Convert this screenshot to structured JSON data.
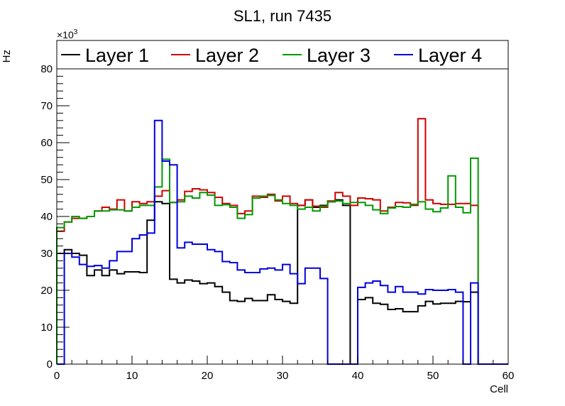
{
  "chart_data": {
    "type": "line",
    "style": "step-histogram",
    "title": "SL1, run 7435",
    "xlabel": "Cell",
    "ylabel": "Hz",
    "y_multiplier": "×10",
    "y_multiplier_exp": "3",
    "xlim": [
      0,
      60
    ],
    "ylim": [
      0,
      80
    ],
    "x_ticks": [
      "0",
      "10",
      "20",
      "30",
      "40",
      "50",
      "60"
    ],
    "y_ticks": [
      "0",
      "10",
      "20",
      "30",
      "40",
      "50",
      "60",
      "70",
      "80"
    ],
    "grid": false,
    "legend_position": "top",
    "bin_width": 1,
    "series": [
      {
        "name": "Layer 1",
        "color": "#000000",
        "values": [
          30,
          31,
          30,
          29.5,
          24,
          25.5,
          24,
          25.5,
          24.5,
          25,
          25,
          24.8,
          39,
          44,
          43.5,
          23,
          22,
          22.8,
          22.5,
          21.8,
          22,
          21,
          19.5,
          17.2,
          17,
          17.8,
          17.2,
          17.2,
          18.8,
          17.5,
          17,
          16.5,
          43,
          44.5,
          42.5,
          43,
          44,
          44.5,
          43,
          0,
          17.5,
          18,
          16.5,
          16.2,
          14.8,
          15,
          14.2,
          14.2,
          15.8,
          17,
          16.3,
          16.5,
          16.5,
          17,
          16.9,
          19.5,
          0,
          0,
          0,
          0
        ]
      },
      {
        "name": "Layer 2",
        "color": "#d00000",
        "values": [
          36,
          38.5,
          39.5,
          39.5,
          40,
          41.5,
          42.5,
          42,
          44.5,
          41.5,
          44,
          43.5,
          44,
          45.5,
          47,
          43.8,
          44.5,
          46.8,
          47.5,
          47.2,
          46.5,
          45.2,
          43.5,
          43,
          40.8,
          41.5,
          45.5,
          45.2,
          46,
          44.2,
          45.5,
          43.5,
          43,
          44.5,
          42.8,
          42.5,
          44.2,
          46.5,
          45.5,
          43,
          45,
          44.8,
          44.5,
          41.5,
          42.5,
          43.8,
          43.7,
          43,
          66.5,
          44.5,
          43.5,
          43.3,
          43.3,
          43.5,
          43.5,
          43,
          0,
          0,
          0,
          0
        ]
      },
      {
        "name": "Layer 3",
        "color": "#009900",
        "values": [
          37,
          38.5,
          40,
          39.5,
          40,
          41.5,
          41.5,
          41.8,
          41.8,
          41.5,
          42.5,
          43,
          43,
          48,
          55.5,
          43.8,
          44,
          45.5,
          45,
          46.5,
          45.8,
          43,
          43.2,
          42.5,
          39.5,
          40.5,
          45,
          45.5,
          45.7,
          44.5,
          43.5,
          43,
          42,
          42.5,
          41.5,
          42.8,
          44,
          44.2,
          43.5,
          43.8,
          43.8,
          43,
          41.8,
          40.8,
          42.3,
          42.7,
          42.5,
          43.3,
          44,
          42,
          41.3,
          42.3,
          51,
          42.5,
          41,
          55.8,
          0,
          0,
          0,
          0
        ]
      },
      {
        "name": "Layer 4",
        "color": "#0000dd",
        "values": [
          0,
          30,
          29,
          27,
          26.5,
          26.7,
          26,
          28,
          30.5,
          30.5,
          34,
          35,
          35.5,
          66,
          55,
          54,
          31.5,
          33,
          32.5,
          32.5,
          31,
          30.5,
          27.8,
          27.5,
          25.5,
          24.8,
          24.8,
          25.8,
          26,
          25.5,
          27,
          24.5,
          21.8,
          26,
          26,
          23.2,
          0,
          0,
          0,
          0,
          20.8,
          22,
          22.5,
          21.3,
          19.5,
          21,
          19.5,
          19.5,
          19,
          20.2,
          20,
          20,
          20.2,
          19.5,
          0,
          22,
          0,
          0,
          0,
          0
        ]
      }
    ]
  }
}
